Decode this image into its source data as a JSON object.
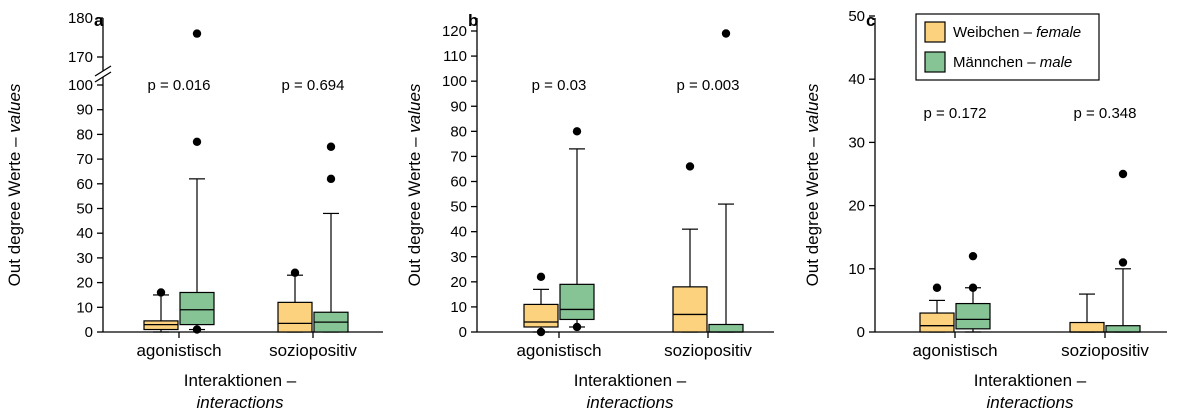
{
  "colors": {
    "female": "#fcd27f",
    "male": "#86c395"
  },
  "legend": [
    {
      "key": "female",
      "label": "Weibchen – ",
      "label_italic": "female"
    },
    {
      "key": "male",
      "label": "Männchen – ",
      "label_italic": "male"
    }
  ],
  "chart_data": [
    {
      "type": "box",
      "panel": "a",
      "ylabel": "Out degree Werte – ",
      "ylabel_italic": "values",
      "xlabel": "Interaktionen –",
      "xlabel_italic": "interactions",
      "categories": [
        "agonistisch",
        "soziopositiv"
      ],
      "axis_break": {
        "from": 100,
        "to": 170
      },
      "yticks": [
        0,
        10,
        20,
        30,
        40,
        50,
        60,
        70,
        80,
        90,
        100,
        170,
        180
      ],
      "ytick_labels": [
        "0",
        "10",
        "20",
        "30",
        "40",
        "50",
        "60",
        "70",
        "80",
        "90",
        "100",
        "170",
        "180"
      ],
      "ylim": [
        0,
        180
      ],
      "pvalues": [
        "p = 0.016",
        "p = 0.694"
      ],
      "series": [
        {
          "key": "female",
          "boxes": [
            {
              "min": 0,
              "q1": 1,
              "median": 3,
              "q3": 4.5,
              "max": 15,
              "outliers": [
                16
              ]
            },
            {
              "min": 0,
              "q1": 0,
              "median": 3.5,
              "q3": 12,
              "max": 23,
              "outliers": [
                24
              ]
            }
          ]
        },
        {
          "key": "male",
          "boxes": [
            {
              "min": 1,
              "q1": 3,
              "median": 9,
              "q3": 16,
              "max": 62,
              "outliers": [
                1,
                77,
                176
              ]
            },
            {
              "min": 0,
              "q1": 0,
              "median": 4,
              "q3": 8,
              "max": 48,
              "outliers": [
                62,
                75
              ]
            }
          ]
        }
      ]
    },
    {
      "type": "box",
      "panel": "b",
      "ylabel": "Out degree Werte – ",
      "ylabel_italic": "values",
      "xlabel": "Interaktionen –",
      "xlabel_italic": "interactions",
      "categories": [
        "agonistisch",
        "soziopositiv"
      ],
      "yticks": [
        0,
        10,
        20,
        30,
        40,
        50,
        60,
        70,
        80,
        90,
        100,
        110,
        120
      ],
      "ytick_labels": [
        "0",
        "10",
        "20",
        "30",
        "40",
        "50",
        "60",
        "70",
        "80",
        "90",
        "100",
        "110",
        "120"
      ],
      "ylim": [
        0,
        120
      ],
      "pvalues": [
        "p = 0.03",
        "p = 0.003"
      ],
      "series": [
        {
          "key": "female",
          "boxes": [
            {
              "min": 0,
              "q1": 2,
              "median": 4,
              "q3": 11,
              "max": 17,
              "outliers": [
                0,
                22
              ]
            },
            {
              "min": 0,
              "q1": 0,
              "median": 7,
              "q3": 18,
              "max": 41,
              "outliers": [
                66
              ]
            }
          ]
        },
        {
          "key": "male",
          "boxes": [
            {
              "min": 2,
              "q1": 5,
              "median": 9,
              "q3": 19,
              "max": 73,
              "outliers": [
                2,
                80
              ]
            },
            {
              "min": 0,
              "q1": 0,
              "median": 0,
              "q3": 3,
              "max": 51,
              "outliers": [
                119
              ]
            }
          ]
        }
      ]
    },
    {
      "type": "box",
      "panel": "c",
      "ylabel": "Out degree Werte – ",
      "ylabel_italic": "values",
      "xlabel": "Interaktionen –",
      "xlabel_italic": "interactions",
      "categories": [
        "agonistisch",
        "soziopositiv"
      ],
      "yticks": [
        0,
        10,
        20,
        30,
        40,
        50
      ],
      "ytick_labels": [
        "0",
        "10",
        "20",
        "30",
        "40",
        "50"
      ],
      "ylim": [
        0,
        50
      ],
      "pvalues": [
        "p = 0.172",
        "p = 0.348"
      ],
      "legend_position": "top-right",
      "series": [
        {
          "key": "female",
          "boxes": [
            {
              "min": 0,
              "q1": 0,
              "median": 1,
              "q3": 3,
              "max": 5,
              "outliers": [
                7
              ]
            },
            {
              "min": 0,
              "q1": 0,
              "median": 0,
              "q3": 1.5,
              "max": 6,
              "outliers": []
            }
          ]
        },
        {
          "key": "male",
          "boxes": [
            {
              "min": 0,
              "q1": 0.5,
              "median": 2,
              "q3": 4.5,
              "max": 7,
              "outliers": [
                7,
                12
              ]
            },
            {
              "min": 0,
              "q1": 0,
              "median": 0,
              "q3": 1,
              "max": 10,
              "outliers": [
                11,
                25
              ]
            }
          ]
        }
      ]
    }
  ]
}
